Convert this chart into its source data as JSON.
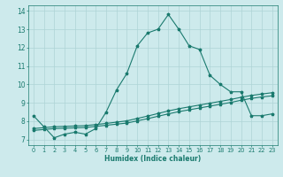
{
  "x": [
    0,
    1,
    2,
    3,
    4,
    5,
    6,
    7,
    8,
    9,
    10,
    11,
    12,
    13,
    14,
    15,
    16,
    17,
    18,
    19,
    20,
    21,
    22,
    23
  ],
  "y_main": [
    8.3,
    7.7,
    7.1,
    7.3,
    7.4,
    7.3,
    7.6,
    8.5,
    9.7,
    10.6,
    12.1,
    12.8,
    13.0,
    13.8,
    13.0,
    12.1,
    11.9,
    10.5,
    10.0,
    9.6,
    9.6,
    8.3,
    8.3,
    8.4
  ],
  "y_line1": [
    7.6,
    7.65,
    7.7,
    7.72,
    7.74,
    7.76,
    7.82,
    7.88,
    7.95,
    8.02,
    8.15,
    8.28,
    8.42,
    8.56,
    8.68,
    8.78,
    8.88,
    8.98,
    9.08,
    9.18,
    9.3,
    9.4,
    9.48,
    9.55
  ],
  "y_line2": [
    7.5,
    7.55,
    7.6,
    7.62,
    7.64,
    7.66,
    7.72,
    7.78,
    7.84,
    7.9,
    8.02,
    8.14,
    8.27,
    8.4,
    8.52,
    8.62,
    8.72,
    8.82,
    8.92,
    9.02,
    9.14,
    9.24,
    9.32,
    9.38
  ],
  "line_color": "#1a7a6e",
  "bg_color": "#cdeaec",
  "grid_color": "#aed4d6",
  "xlabel": "Humidex (Indice chaleur)",
  "ylim": [
    6.7,
    14.3
  ],
  "xlim": [
    -0.5,
    23.5
  ],
  "yticks": [
    7,
    8,
    9,
    10,
    11,
    12,
    13,
    14
  ],
  "xticks": [
    0,
    1,
    2,
    3,
    4,
    5,
    6,
    7,
    8,
    9,
    10,
    11,
    12,
    13,
    14,
    15,
    16,
    17,
    18,
    19,
    20,
    21,
    22,
    23
  ]
}
